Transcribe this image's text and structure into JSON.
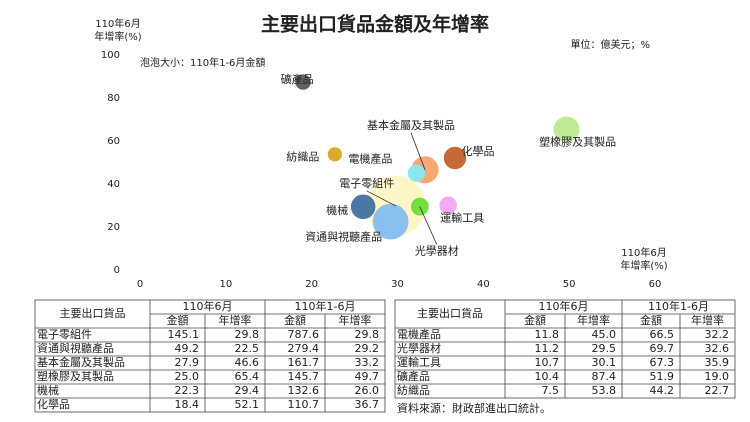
{
  "chart_data": {
    "type": "bubble",
    "title": "主要出口貨品金額及年增率",
    "unit": "單位：億美元；%",
    "size_note": "泡泡大小：110年1-6月金額",
    "y_label": [
      "110年6月",
      "年增率(%)"
    ],
    "x_label": [
      "110年6月",
      "年增率(%)"
    ],
    "xlim": [
      0,
      60
    ],
    "xticks": [
      0,
      10,
      20,
      30,
      40,
      50,
      60
    ],
    "ylim": [
      0,
      100
    ],
    "yticks": [
      0,
      20,
      40,
      60,
      80,
      100
    ],
    "colors": [
      "#fff6c4",
      "#84bdf0",
      "#f5a372",
      "#bce88e",
      "#41719f",
      "#c2622b",
      "#86e9f1",
      "#6bdc36",
      "#f2a6f0",
      "#585858",
      "#d8a423"
    ]
  },
  "tables": [
    {
      "header": {
        "item": "主要出口貨品",
        "groups": [
          "110年6月",
          "110年1-6月"
        ],
        "cols": [
          "金額",
          "年增率",
          "金額",
          "年增率"
        ]
      },
      "rows": [
        [
          "電子零組件",
          145.1,
          29.8,
          787.6,
          29.8
        ],
        [
          "資通與視聽產品",
          49.2,
          22.5,
          279.4,
          29.2
        ],
        [
          "基本金屬及其製品",
          27.9,
          46.6,
          161.7,
          33.2
        ],
        [
          "塑橡膠及其製品",
          {
            "value": 25,
            "label": "25.0"
          },
          65.4,
          145.7,
          49.7
        ],
        [
          "機械",
          22.3,
          29.4,
          132.6,
          {
            "value": 26,
            "label": "26.0"
          }
        ],
        [
          "化學品",
          18.4,
          52.1,
          110.7,
          36.7
        ]
      ]
    },
    {
      "header": {
        "item": "主要出口貨品",
        "groups": [
          "110年6月",
          "110年1-6月"
        ],
        "cols": [
          "金額",
          "年增率",
          "金額",
          "年增率"
        ]
      },
      "rows": [
        [
          "電機產品",
          11.8,
          {
            "value": 45,
            "label": "45.0"
          },
          66.5,
          32.2
        ],
        [
          "光學器材",
          11.2,
          29.5,
          69.7,
          32.6
        ],
        [
          "運輸工具",
          10.7,
          30.1,
          67.3,
          35.9
        ],
        [
          "礦產品",
          10.4,
          87.4,
          51.9,
          {
            "value": 19,
            "label": "19.0"
          }
        ],
        [
          "紡織品",
          7.5,
          53.8,
          44.2,
          22.7
        ]
      ]
    }
  ],
  "source": "資料來源：財政部進出口統計。"
}
